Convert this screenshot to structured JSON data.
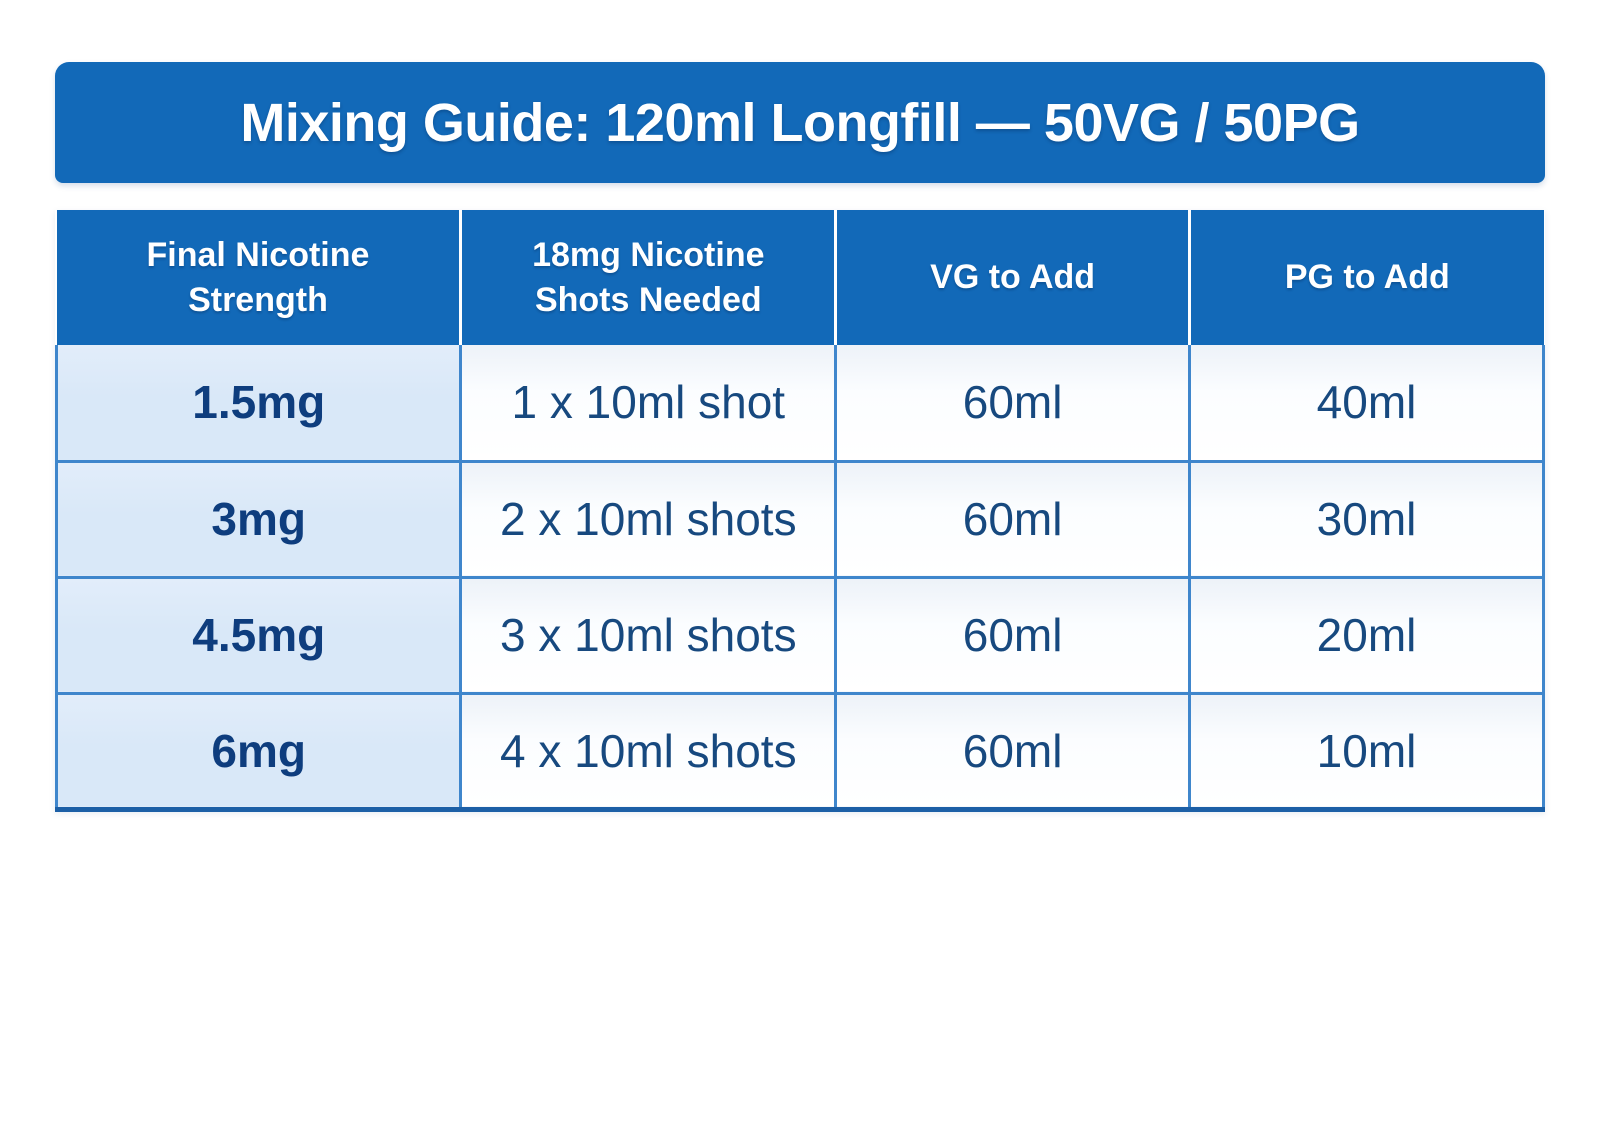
{
  "chart_data": {
    "type": "table",
    "title": "Mixing Guide: 120ml Longfill — 50VG / 50PG",
    "columns": [
      "Final Nicotine Strength",
      "18mg Nicotine Shots Needed",
      "VG to Add",
      "PG to Add"
    ],
    "rows": [
      [
        "1.5mg",
        "1 x 10ml shot",
        "60ml",
        "40ml"
      ],
      [
        "3mg",
        "2 x 10ml shots",
        "60ml",
        "30ml"
      ],
      [
        "4.5mg",
        "3 x 10ml shots",
        "60ml",
        "20ml"
      ],
      [
        "6mg",
        "4 x 10ml shots",
        "60ml",
        "10ml"
      ]
    ]
  },
  "colors": {
    "primary-blue": "#1269b8",
    "cell-border": "#3f86cc",
    "bottom-border": "#1c5fa6",
    "strength-bg": "#d9e8f8",
    "data-text": "#17497f",
    "strength-text": "#0e3d7e",
    "header-text": "#ffffff",
    "page-bg": "#ffffff"
  }
}
